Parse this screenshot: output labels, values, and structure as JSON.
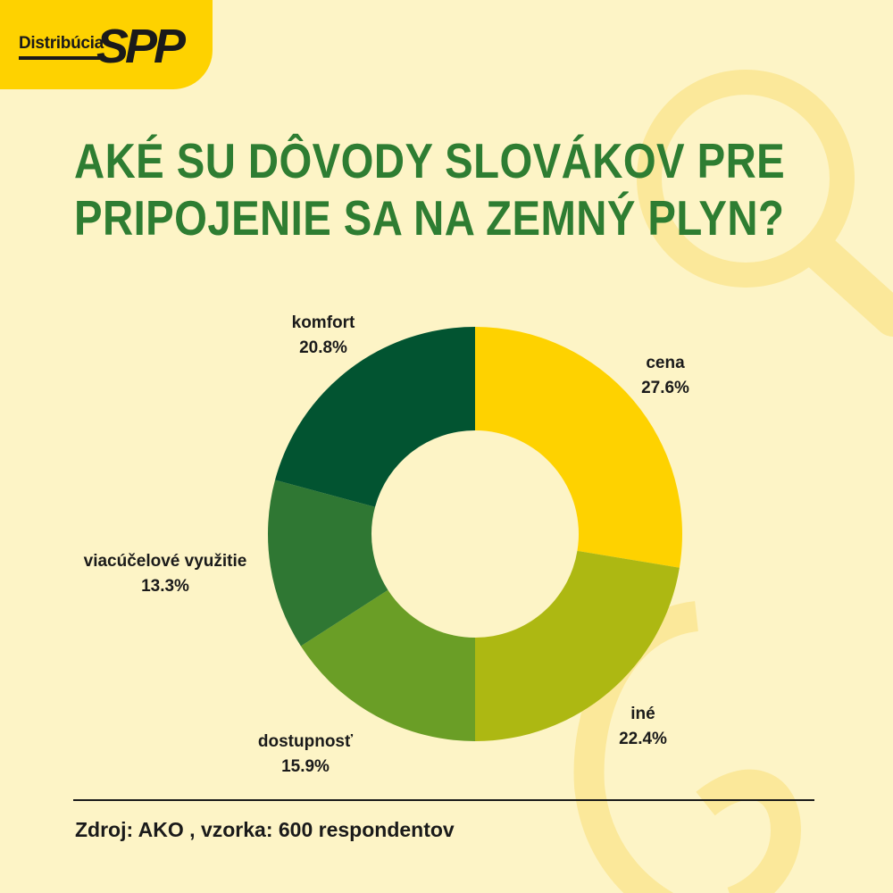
{
  "brand": {
    "logo_text": "Distribúcia",
    "logo_mark": "SPP"
  },
  "title_lines": [
    "AKÉ SU DÔVODY SLOVÁKOV PRE",
    "PRIPOJENIE SA NA ZEMNÝ PLYN?"
  ],
  "colors": {
    "background": "#fdf4c6",
    "title": "#2e7d32",
    "decoration": "#fbe89a",
    "logo_bg": "#fed200"
  },
  "icons": [
    "magnifier-icon",
    "flame-icon"
  ],
  "chart_data": {
    "type": "pie",
    "donut": true,
    "unit": "%",
    "slices": [
      {
        "label": "cena",
        "value": 27.6,
        "display": "27.6%",
        "color": "#fed200"
      },
      {
        "label": "iné",
        "value": 22.4,
        "display": "22.4%",
        "color": "#adb812"
      },
      {
        "label": "dostupnosť",
        "value": 15.9,
        "display": "15.9%",
        "color": "#6a9e26"
      },
      {
        "label": "viacúčelové využitie",
        "value": 13.3,
        "display": "13.3%",
        "color": "#2f7733"
      },
      {
        "label": "komfort",
        "value": 20.8,
        "display": "20.8%",
        "color": "#025431"
      }
    ]
  },
  "footer": {
    "source": "Zdroj:  AKO , vzorka: 600 respondentov"
  }
}
